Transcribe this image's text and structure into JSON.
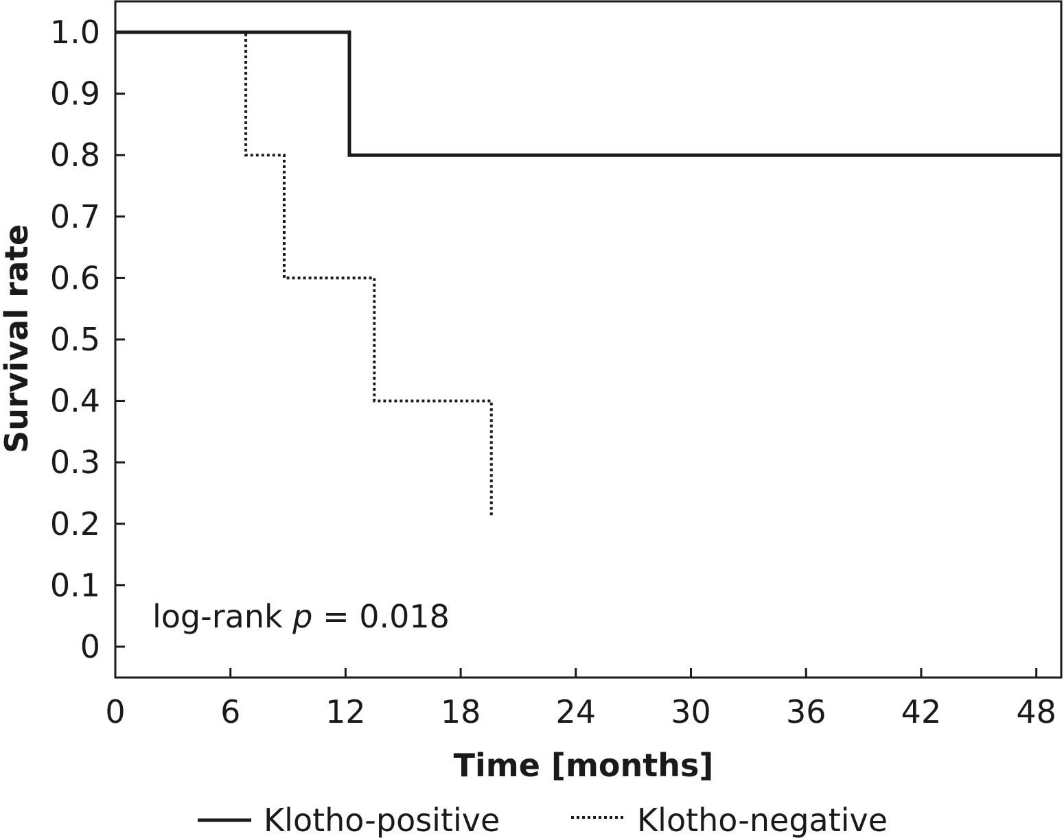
{
  "chart_data": {
    "type": "line",
    "step": true,
    "xlabel": "Time [months]",
    "ylabel": "Survival rate",
    "xlim": [
      0,
      49.3
    ],
    "ylim": [
      0,
      1.0
    ],
    "xticks": [
      0,
      6,
      12,
      18,
      24,
      30,
      36,
      42,
      48
    ],
    "xtick_labels": [
      "0",
      "6",
      "12",
      "18",
      "24",
      "30",
      "36",
      "42",
      "48"
    ],
    "yticks": [
      0,
      0.1,
      0.2,
      0.3,
      0.4,
      0.5,
      0.6,
      0.7,
      0.8,
      0.9,
      1.0
    ],
    "ytick_labels": [
      "0",
      "0.1",
      "0.2",
      "0.3",
      "0.4",
      "0.5",
      "0.6",
      "0.7",
      "0.8",
      "0.9",
      "1.0"
    ],
    "grid": false,
    "legend_position": "bottom",
    "annotation": {
      "prefix": "log-rank ",
      "italic": "p",
      "suffix": " = 0.018"
    },
    "series": [
      {
        "name": "Klotho-positive",
        "style": "solid",
        "color": "#1a1a1a",
        "x": [
          0,
          12.2,
          12.2,
          49.3
        ],
        "y": [
          1.0,
          1.0,
          0.8,
          0.8
        ]
      },
      {
        "name": "Klotho-negative",
        "style": "dotted",
        "color": "#1a1a1a",
        "x": [
          0,
          6.8,
          6.8,
          8.8,
          8.8,
          13.5,
          13.5,
          19.6,
          19.6
        ],
        "y": [
          1.0,
          1.0,
          0.8,
          0.8,
          0.6,
          0.6,
          0.4,
          0.4,
          0.21
        ]
      }
    ]
  }
}
